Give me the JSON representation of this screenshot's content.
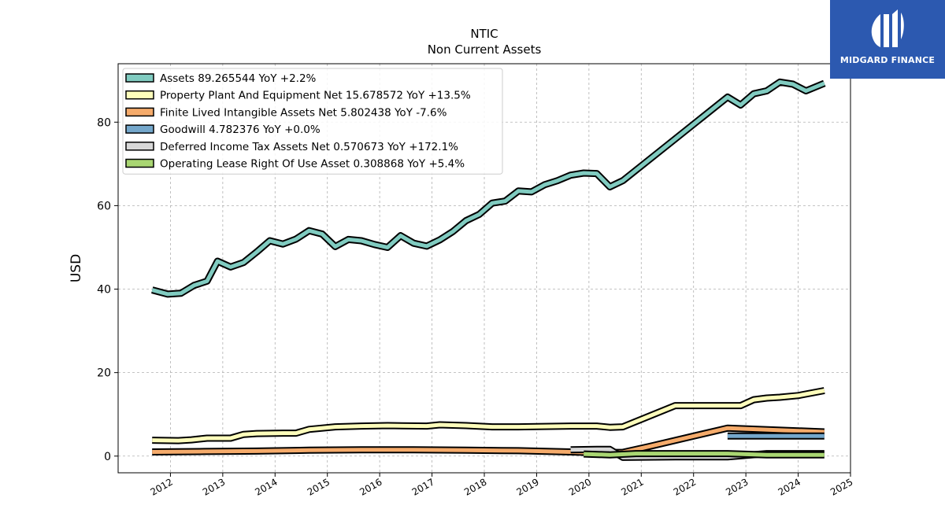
{
  "logo": {
    "text": "MIDGARD FINANCE",
    "icon": "midgard-logo-icon",
    "color": "#2c59b0"
  },
  "chart_data": {
    "type": "line",
    "title": "NTIC",
    "subtitle": "Non Current  Assets",
    "ylabel": "USD",
    "xlabel": "",
    "ylim": [
      -4,
      94
    ],
    "xlim": [
      2011.0,
      2025.0
    ],
    "yticks": [
      0,
      20,
      40,
      60,
      80
    ],
    "xticks": [
      2012,
      2013,
      2014,
      2015,
      2016,
      2017,
      2018,
      2019,
      2020,
      2021,
      2022,
      2023,
      2024,
      2025
    ],
    "grid": true,
    "legend_position": "top-left",
    "series": [
      {
        "name": "Assets  89.265544 YoY +2.2%",
        "color": "#80cbc0",
        "points": [
          [
            2011.65,
            39.8
          ],
          [
            2011.95,
            38.8
          ],
          [
            2012.2,
            39.0
          ],
          [
            2012.45,
            40.9
          ],
          [
            2012.7,
            41.9
          ],
          [
            2012.9,
            46.7
          ],
          [
            2013.15,
            45.3
          ],
          [
            2013.4,
            46.4
          ],
          [
            2013.65,
            48.9
          ],
          [
            2013.9,
            51.6
          ],
          [
            2014.15,
            50.8
          ],
          [
            2014.4,
            52.0
          ],
          [
            2014.65,
            54.0
          ],
          [
            2014.9,
            53.2
          ],
          [
            2015.15,
            50.2
          ],
          [
            2015.4,
            51.9
          ],
          [
            2015.65,
            51.6
          ],
          [
            2015.9,
            50.7
          ],
          [
            2016.15,
            50.0
          ],
          [
            2016.4,
            52.8
          ],
          [
            2016.65,
            51.0
          ],
          [
            2016.9,
            50.3
          ],
          [
            2017.15,
            51.8
          ],
          [
            2017.4,
            53.8
          ],
          [
            2017.65,
            56.4
          ],
          [
            2017.9,
            57.9
          ],
          [
            2018.15,
            60.6
          ],
          [
            2018.4,
            61.1
          ],
          [
            2018.65,
            63.5
          ],
          [
            2018.9,
            63.3
          ],
          [
            2019.15,
            65.0
          ],
          [
            2019.4,
            66.0
          ],
          [
            2019.65,
            67.3
          ],
          [
            2019.9,
            67.8
          ],
          [
            2020.15,
            67.7
          ],
          [
            2020.4,
            64.5
          ],
          [
            2020.65,
            66.0
          ],
          [
            2021.65,
            76.0
          ],
          [
            2022.65,
            86.0
          ],
          [
            2022.9,
            84.1
          ],
          [
            2023.15,
            86.8
          ],
          [
            2023.4,
            87.5
          ],
          [
            2023.65,
            89.6
          ],
          [
            2023.9,
            89.1
          ],
          [
            2024.15,
            87.5
          ],
          [
            2024.5,
            89.3
          ]
        ]
      },
      {
        "name": "Property Plant And Equipment Net  15.678572 YoY +13.5%",
        "color": "#fdfdbb",
        "points": [
          [
            2011.65,
            3.8
          ],
          [
            2012.15,
            3.7
          ],
          [
            2012.4,
            3.9
          ],
          [
            2012.7,
            4.3
          ],
          [
            2013.15,
            4.3
          ],
          [
            2013.4,
            5.2
          ],
          [
            2013.65,
            5.4
          ],
          [
            2014.15,
            5.5
          ],
          [
            2014.4,
            5.5
          ],
          [
            2014.65,
            6.4
          ],
          [
            2015.15,
            7.0
          ],
          [
            2015.65,
            7.2
          ],
          [
            2016.15,
            7.3
          ],
          [
            2016.9,
            7.2
          ],
          [
            2017.15,
            7.5
          ],
          [
            2017.65,
            7.3
          ],
          [
            2018.15,
            7.0
          ],
          [
            2018.65,
            7.0
          ],
          [
            2019.15,
            7.1
          ],
          [
            2019.65,
            7.2
          ],
          [
            2020.15,
            7.2
          ],
          [
            2020.4,
            6.9
          ],
          [
            2020.65,
            7.0
          ],
          [
            2021.65,
            12.1
          ],
          [
            2022.9,
            12.1
          ],
          [
            2023.15,
            13.5
          ],
          [
            2023.4,
            13.9
          ],
          [
            2023.65,
            14.1
          ],
          [
            2024.0,
            14.5
          ],
          [
            2024.5,
            15.7
          ]
        ]
      },
      {
        "name": "Finite Lived Intangible Assets Net  5.802438 YoY -7.6%",
        "color": "#f5ab6b",
        "points": [
          [
            2011.65,
            1.0
          ],
          [
            2012.65,
            1.1
          ],
          [
            2013.65,
            1.2
          ],
          [
            2014.65,
            1.4
          ],
          [
            2015.65,
            1.5
          ],
          [
            2016.65,
            1.5
          ],
          [
            2017.65,
            1.4
          ],
          [
            2018.65,
            1.3
          ],
          [
            2019.65,
            1.0
          ],
          [
            2020.15,
            0.8
          ],
          [
            2020.65,
            0.9
          ],
          [
            2021.15,
            2.3
          ],
          [
            2022.65,
            6.7
          ],
          [
            2024.5,
            5.8
          ]
        ]
      },
      {
        "name": "Goodwill  4.782376 YoY +0.0%",
        "color": "#74a7cb",
        "points": [
          [
            2022.65,
            4.8
          ],
          [
            2024.5,
            4.8
          ]
        ]
      },
      {
        "name": "Deferred Income Tax Assets Net  0.570673 YoY +172.1%",
        "color": "#d7d7d7",
        "points": [
          [
            2019.65,
            1.5
          ],
          [
            2020.15,
            1.6
          ],
          [
            2020.4,
            1.6
          ],
          [
            2020.65,
            -0.3
          ],
          [
            2021.65,
            -0.2
          ],
          [
            2022.65,
            -0.2
          ],
          [
            2023.4,
            0.6
          ],
          [
            2024.5,
            0.6
          ]
        ]
      },
      {
        "name": "Operating Lease Right Of Use Asset  0.308868 YoY +5.4%",
        "color": "#a9d672",
        "points": [
          [
            2019.9,
            0.5
          ],
          [
            2020.4,
            0.3
          ],
          [
            2020.9,
            0.6
          ],
          [
            2021.65,
            0.6
          ],
          [
            2022.65,
            0.6
          ],
          [
            2023.4,
            0.3
          ],
          [
            2024.5,
            0.3
          ]
        ]
      }
    ]
  }
}
